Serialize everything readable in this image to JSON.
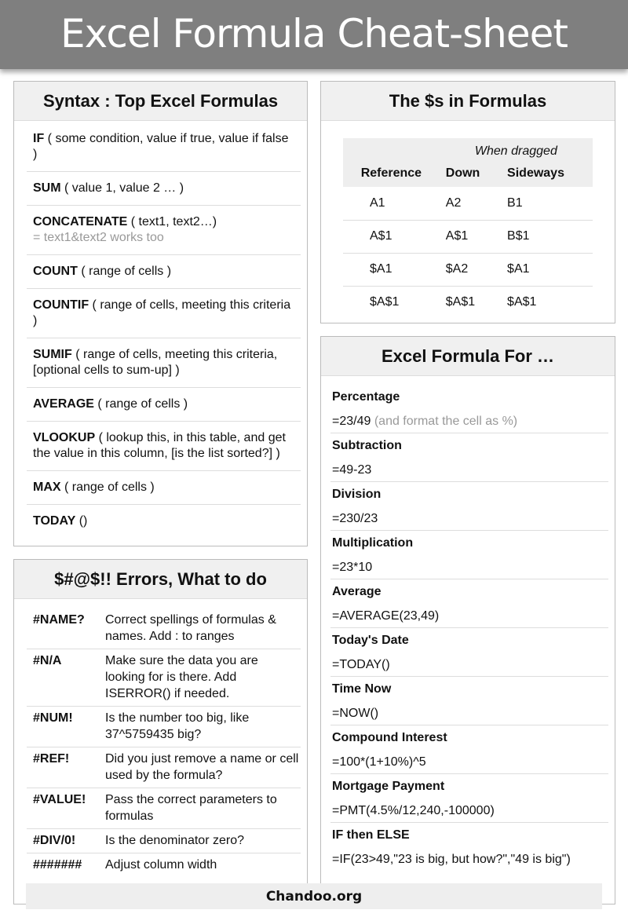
{
  "title": "Excel Formula Cheat-sheet",
  "syntax": {
    "heading": "Syntax : Top Excel Formulas",
    "items": [
      {
        "name": "IF",
        "args": " ( some condition, value if true, value if false )"
      },
      {
        "name": "SUM",
        "args": " ( value 1, value 2 … )"
      },
      {
        "name": "CONCATENATE",
        "args": " ( text1, text2…)",
        "note": "= text1&text2 works too"
      },
      {
        "name": "COUNT",
        "args": " ( range of cells )"
      },
      {
        "name": "COUNTIF",
        "args": " ( range of cells, meeting this criteria )"
      },
      {
        "name": "SUMIF",
        "args": " ( range of cells, meeting this criteria, [optional cells to sum-up] )"
      },
      {
        "name": "AVERAGE",
        "args": " ( range of cells )"
      },
      {
        "name": "VLOOKUP",
        "args": " ( lookup this, in this table, and get the value in this column, [is the list sorted?] )"
      },
      {
        "name": "MAX",
        "args": " ( range of cells )"
      },
      {
        "name": "TODAY",
        "args": " ()"
      }
    ]
  },
  "errors": {
    "heading": "$#@$!! Errors, What to do",
    "items": [
      {
        "code": "#NAME?",
        "fix": "Correct spellings of formulas & names. Add : to ranges"
      },
      {
        "code": "#N/A",
        "fix": "Make sure the data you are looking for is there. Add ISERROR() if needed."
      },
      {
        "code": "#NUM!",
        "fix": "Is the number too big, like 37^5759435 big?"
      },
      {
        "code": "#REF!",
        "fix": "Did you just remove a name or cell used by the formula?"
      },
      {
        "code": "#VALUE!",
        "fix": "Pass the correct parameters to formulas"
      },
      {
        "code": "#DIV/0!",
        "fix": "Is the denominator zero?"
      },
      {
        "code": "#######",
        "fix": "Adjust column width"
      }
    ]
  },
  "dollars": {
    "heading": "The $s in Formulas",
    "group": "When dragged",
    "columns": [
      "Reference",
      "Down",
      "Sideways"
    ],
    "rows": [
      [
        "A1",
        "A2",
        "B1"
      ],
      [
        "A$1",
        "A$1",
        "B$1"
      ],
      [
        "$A1",
        "$A2",
        "$A1"
      ],
      [
        "$A$1",
        "$A$1",
        "$A$1"
      ]
    ]
  },
  "formulas": {
    "heading": "Excel Formula For …",
    "items": [
      {
        "label": "Percentage",
        "value": "=23/49",
        "note": " (and format the cell as %)"
      },
      {
        "label": "Subtraction",
        "value": "=49-23"
      },
      {
        "label": "Division",
        "value": "=230/23"
      },
      {
        "label": "Multiplication",
        "value": "=23*10"
      },
      {
        "label": "Average",
        "value": "=AVERAGE(23,49)"
      },
      {
        "label": "Today's Date",
        "value": "=TODAY()"
      },
      {
        "label": "Time Now",
        "value": "=NOW()"
      },
      {
        "label": "Compound Interest",
        "value": "=100*(1+10%)^5"
      },
      {
        "label": "Mortgage Payment",
        "value": "=PMT(4.5%/12,240,-100000)"
      },
      {
        "label": "IF then ELSE",
        "value": "=IF(23>49,\"23 is big, but how?\",\"49 is big\")"
      }
    ]
  },
  "footer": "Chandoo.org"
}
